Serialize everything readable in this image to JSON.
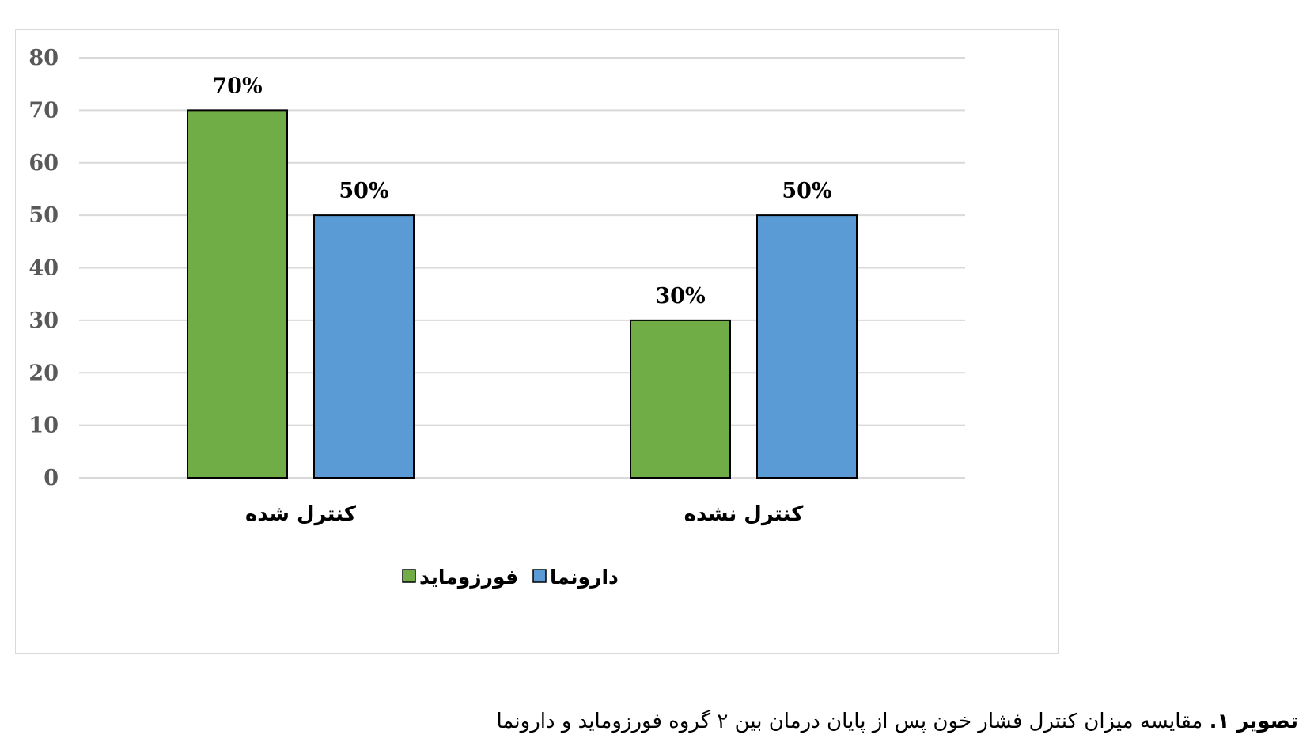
{
  "chart_data": {
    "type": "bar",
    "categories": [
      "کنترل شده",
      "کنترل نشده"
    ],
    "series": [
      {
        "name": "فورزومايد",
        "color": "#70ad47",
        "values": [
          70,
          30
        ],
        "labels": [
          "70%",
          "30%"
        ]
      },
      {
        "name": "دارونما",
        "color": "#5b9bd5",
        "values": [
          50,
          50
        ],
        "labels": [
          "50%",
          "50%"
        ]
      }
    ],
    "yticks": [
      "0",
      "10",
      "20",
      "30",
      "40",
      "50",
      "60",
      "70",
      "80"
    ],
    "ylim": [
      0,
      80
    ],
    "grid": true,
    "legend_position": "bottom"
  },
  "caption": {
    "label": "تصوير ۱.",
    "text": "مقايسه ميزان كنترل فشار خون پس از پايان درمان بين ۲ گروه فورزومايد و دارونما"
  }
}
